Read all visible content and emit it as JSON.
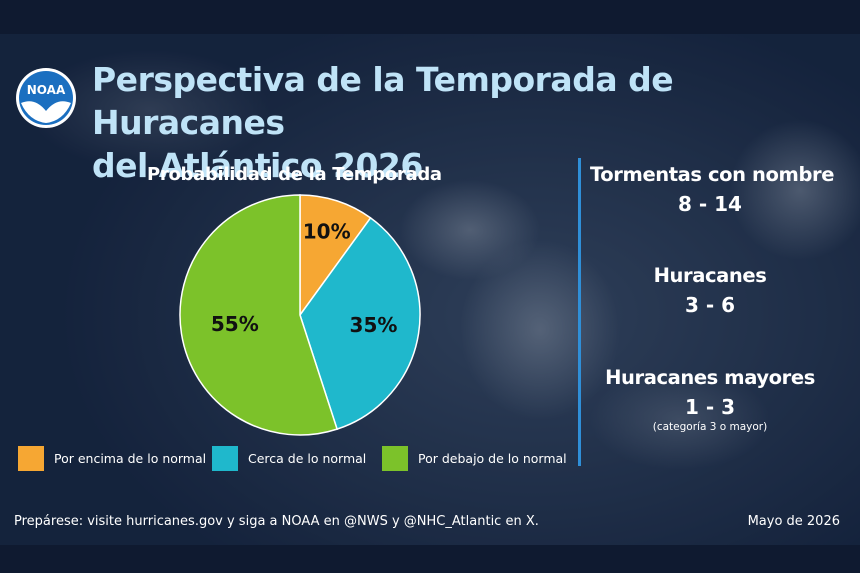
{
  "logo": {
    "text": "NOAA"
  },
  "header": {
    "title_line1": "Perspectiva de la Temporada de Huracanes",
    "title_line2": "del Atlántico 2026"
  },
  "chart_data": {
    "type": "pie",
    "title": "Probabilidad de la Temporada",
    "categories": [
      "Por encima de lo normal",
      "Cerca de lo normal",
      "Por debajo de lo normal"
    ],
    "values": [
      10,
      35,
      55
    ],
    "labels": [
      "10%",
      "35%",
      "55%"
    ],
    "colors": [
      "#f6a733",
      "#1fb8cc",
      "#7cc22a"
    ],
    "legend_position": "bottom"
  },
  "stats": [
    {
      "label": "Tormentas con nombre",
      "value": "8 - 14",
      "note": ""
    },
    {
      "label": "Huracanes",
      "value": "3 - 6",
      "note": ""
    },
    {
      "label": "Huracanes mayores",
      "value": "1 - 3",
      "note": "(categoría 3 o mayor)"
    }
  ],
  "footer": {
    "left": "Prepárese: visite hurricanes.gov y siga a NOAA en @NWS y @NHC_Atlantic en X.",
    "right": "Mayo de 2026"
  }
}
